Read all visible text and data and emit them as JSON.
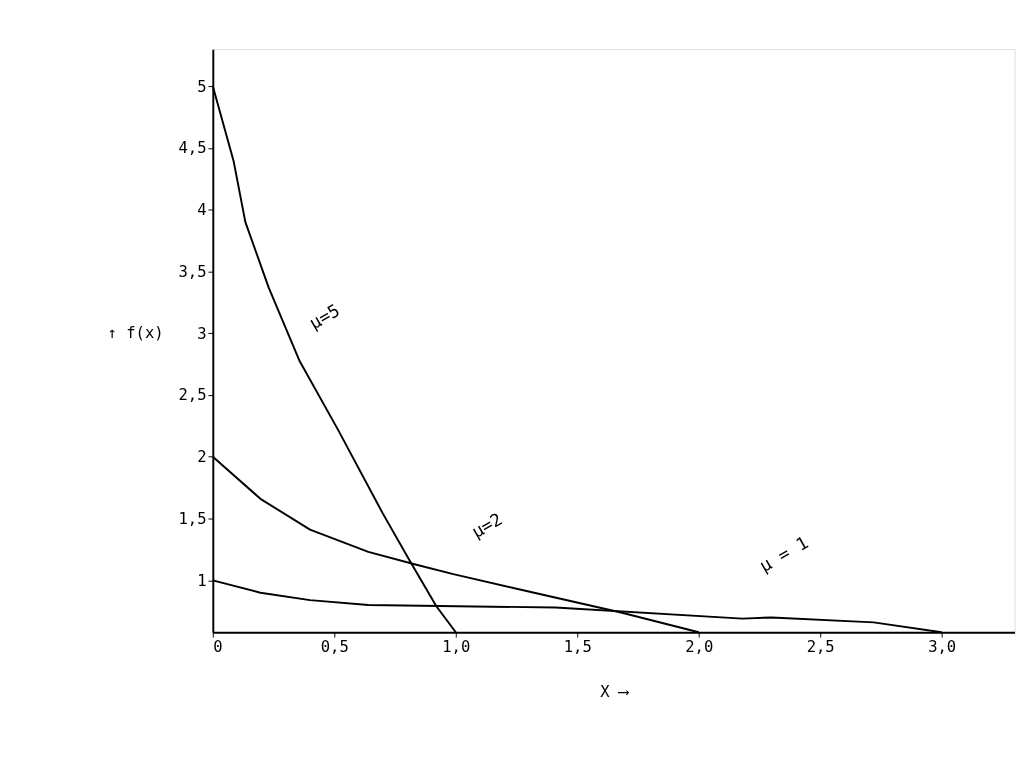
{
  "chart_data": {
    "type": "line",
    "xlabel": "X ⟶",
    "ylabel": "↑ f(x)",
    "xlim": [
      0,
      3.3
    ],
    "ylim": [
      0.58,
      5.3
    ],
    "xticks": [
      {
        "value": 0,
        "label": "0"
      },
      {
        "value": 0.5,
        "label": "0,5"
      },
      {
        "value": 1,
        "label": "1,0"
      },
      {
        "value": 1.5,
        "label": "1,5"
      },
      {
        "value": 2,
        "label": "2,0"
      },
      {
        "value": 2.5,
        "label": "2,5"
      },
      {
        "value": 3,
        "label": "3,0"
      }
    ],
    "yticks": [
      {
        "value": 1,
        "label": "1"
      },
      {
        "value": 1.5,
        "label": "1,5"
      },
      {
        "value": 2,
        "label": "2"
      },
      {
        "value": 2.5,
        "label": "2,5"
      },
      {
        "value": 3,
        "label": "3"
      },
      {
        "value": 3.5,
        "label": "3,5"
      },
      {
        "value": 4,
        "label": "4"
      },
      {
        "value": 4.5,
        "label": "4,5"
      },
      {
        "value": 5,
        "label": "5"
      }
    ],
    "grid": false,
    "legend": false,
    "marker": "none",
    "line_style": "solid",
    "series": [
      {
        "name": "μ=5",
        "color": "#000000",
        "x": [
          0,
          0.086,
          0.134,
          0.23,
          0.356,
          0.515,
          0.7,
          0.81,
          0.92,
          1.0
        ],
        "values": [
          5.0,
          4.39,
          3.9,
          3.37,
          2.78,
          2.22,
          1.54,
          1.16,
          0.79,
          0.58
        ]
      },
      {
        "name": "μ=2",
        "color": "#000000",
        "x": [
          0,
          0.196,
          0.4,
          0.64,
          0.83,
          0.99,
          1.3,
          1.68,
          2.0
        ],
        "values": [
          2.0,
          1.66,
          1.41,
          1.23,
          1.13,
          1.05,
          0.91,
          0.74,
          0.58
        ]
      },
      {
        "name": "μ = 1",
        "color": "#000000",
        "x": [
          0,
          0.196,
          0.4,
          0.64,
          1.41,
          2.18,
          2.3,
          2.72,
          3.0
        ],
        "values": [
          1.0,
          0.9,
          0.84,
          0.8,
          0.78,
          0.69,
          0.7,
          0.66,
          0.58
        ]
      }
    ]
  }
}
